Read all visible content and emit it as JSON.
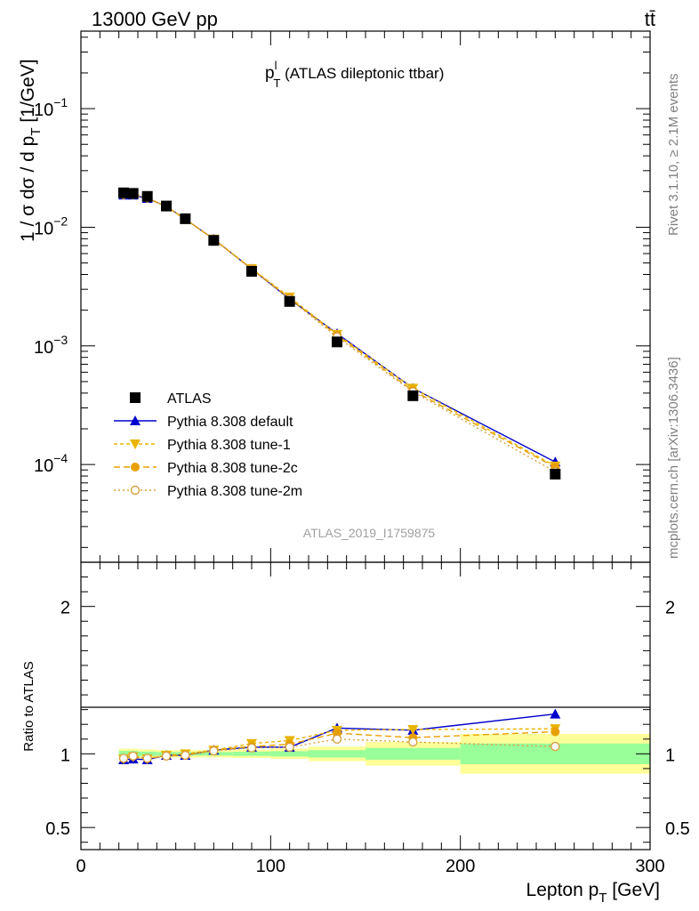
{
  "header": {
    "energy_label": "13000 GeV pp",
    "process_label": "tt̄",
    "rivet_label": "Rivet 3.1.10, ≥ 2.1M events",
    "mcplots_label": "mcplots.cern.ch [arXiv:1306.3436]",
    "analysis_id": "ATLAS_2019_I1759875"
  },
  "chart_data": [
    {
      "type": "line",
      "title_main": "p",
      "title_sup": "l",
      "title_sub": "T",
      "title_rest": " (ATLAS dileptonic ttbar)",
      "ylabel_main": "1 / σ  dσ / d p",
      "ylabel_sub": "T",
      "ylabel_unit": " [1/GeV]",
      "yscale": "log",
      "ylim": [
        1.5e-05,
        0.45
      ],
      "xlim": [
        0,
        300
      ],
      "yticks": [
        {
          "value": 0.1,
          "base": "10",
          "exp": "−1"
        },
        {
          "value": 0.01,
          "base": "10",
          "exp": "−2"
        },
        {
          "value": 0.001,
          "base": "10",
          "exp": "−3"
        },
        {
          "value": 0.0001,
          "base": "10",
          "exp": "−4"
        }
      ],
      "x": [
        22.5,
        27.5,
        35,
        45,
        55,
        70,
        90,
        110,
        135,
        175,
        250
      ],
      "data": {
        "name": "ATLAS",
        "values": [
          0.0195,
          0.0193,
          0.0182,
          0.0151,
          0.0118,
          0.00775,
          0.00425,
          0.00237,
          0.00108,
          0.00038,
          8.3e-05
        ]
      },
      "series": [
        {
          "name": "Pythia 8.308 default",
          "color": "#0000cc",
          "dash": "",
          "marker": "triangle-up",
          "values": [
            0.0187,
            0.0187,
            0.0175,
            0.015,
            0.0117,
            0.00795,
            0.00445,
            0.00248,
            0.00127,
            0.00044,
            0.000105
          ]
        },
        {
          "name": "Pythia 8.308 tune-1",
          "color": "#e8b400",
          "dash": "4,3",
          "marker": "triangle-down",
          "values": [
            0.0188,
            0.0189,
            0.0176,
            0.015,
            0.0117,
            0.00795,
            0.00448,
            0.00258,
            0.00125,
            0.00044,
            9.7e-05
          ]
        },
        {
          "name": "Pythia 8.308 tune-2c",
          "color": "#e8a000",
          "dash": "7,4",
          "marker": "circle",
          "values": [
            0.0189,
            0.019,
            0.0177,
            0.0149,
            0.0117,
            0.00793,
            0.00446,
            0.00252,
            0.00123,
            0.00042,
            9.5e-05
          ]
        },
        {
          "name": "Pythia 8.308 tune-2m",
          "color": "#d8a040",
          "dash": "2,3",
          "marker": "open-circle",
          "values": [
            0.0189,
            0.019,
            0.0177,
            0.0149,
            0.0117,
            0.00791,
            0.00442,
            0.00248,
            0.00119,
            0.00041,
            8.7e-05
          ]
        }
      ],
      "legend_position": "center-left"
    },
    {
      "type": "line",
      "ylabel": "Ratio to ATLAS",
      "xlabel_main": "Lepton p",
      "xlabel_sub": "T",
      "xlabel_unit": " [GeV]",
      "xlim": [
        0,
        300
      ],
      "ylim": [
        0.35,
        2.3
      ],
      "xticks": [
        0,
        100,
        200,
        300
      ],
      "xtick_labels": [
        "0",
        "100",
        "200",
        "300"
      ],
      "yticks": [
        0.5,
        1,
        2
      ],
      "ytick_labels": [
        "0.5",
        "1",
        "2"
      ],
      "bins": [
        {
          "lo": 20,
          "hi": 25,
          "stat": 0.02,
          "total": 0.035
        },
        {
          "lo": 25,
          "hi": 30,
          "stat": 0.02,
          "total": 0.035
        },
        {
          "lo": 30,
          "hi": 40,
          "stat": 0.015,
          "total": 0.03
        },
        {
          "lo": 40,
          "hi": 50,
          "stat": 0.012,
          "total": 0.025
        },
        {
          "lo": 50,
          "hi": 60,
          "stat": 0.012,
          "total": 0.025
        },
        {
          "lo": 60,
          "hi": 80,
          "stat": 0.012,
          "total": 0.025
        },
        {
          "lo": 80,
          "hi": 100,
          "stat": 0.014,
          "total": 0.028
        },
        {
          "lo": 100,
          "hi": 120,
          "stat": 0.018,
          "total": 0.035
        },
        {
          "lo": 120,
          "hi": 150,
          "stat": 0.025,
          "total": 0.05
        },
        {
          "lo": 150,
          "hi": 200,
          "stat": 0.04,
          "total": 0.08
        },
        {
          "lo": 200,
          "hi": 300,
          "stat": 0.07,
          "total": 0.135
        }
      ],
      "x": [
        22.5,
        27.5,
        35,
        45,
        55,
        70,
        90,
        110,
        135,
        175,
        250
      ],
      "series": [
        {
          "name": "Pythia 8.308 default",
          "values": [
            0.96,
            0.965,
            0.96,
            0.99,
            0.99,
            1.025,
            1.045,
            1.045,
            1.175,
            1.16,
            1.27
          ]
        },
        {
          "name": "Pythia 8.308 tune-1",
          "values": [
            0.965,
            0.98,
            0.965,
            0.99,
            1.0,
            1.025,
            1.07,
            1.09,
            1.16,
            1.165,
            1.17
          ]
        },
        {
          "name": "Pythia 8.308 tune-2c",
          "values": [
            0.97,
            0.985,
            0.97,
            0.985,
            0.99,
            1.025,
            1.05,
            1.065,
            1.14,
            1.11,
            1.15
          ]
        },
        {
          "name": "Pythia 8.308 tune-2m",
          "values": [
            0.97,
            0.985,
            0.97,
            0.985,
            0.99,
            1.02,
            1.04,
            1.045,
            1.1,
            1.08,
            1.05
          ]
        }
      ]
    }
  ]
}
